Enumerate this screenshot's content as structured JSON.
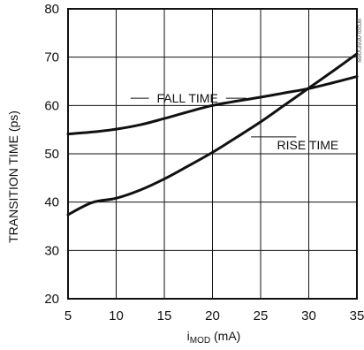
{
  "chart_data": {
    "type": "line",
    "title": "",
    "xlabel": "iMOD (mA)",
    "ylabel": "TRANSITION TIME (ps)",
    "xlim": [
      5,
      35
    ],
    "ylim": [
      20,
      80
    ],
    "x_ticks": [
      5,
      10,
      15,
      20,
      25,
      30,
      35
    ],
    "y_ticks": [
      20,
      30,
      40,
      50,
      60,
      70,
      80
    ],
    "grid": true,
    "legend": "inline-labels",
    "series": [
      {
        "name": "FALL TIME",
        "x": [
          5,
          7.5,
          10,
          12.5,
          15,
          17.5,
          20,
          22.5,
          25,
          27.5,
          30,
          32.5,
          35
        ],
        "values": [
          54.1,
          54.5,
          55.1,
          56.0,
          57.3,
          58.7,
          60.0,
          60.9,
          61.7,
          62.6,
          63.5,
          64.7,
          66.0
        ]
      },
      {
        "name": "RISE TIME",
        "x": [
          5,
          7.5,
          10,
          12.5,
          15,
          17.5,
          20,
          22.5,
          25,
          27.5,
          30,
          32.5,
          35
        ],
        "values": [
          37.4,
          39.9,
          40.8,
          42.5,
          44.8,
          47.5,
          50.3,
          53.4,
          56.6,
          60.1,
          63.6,
          67.1,
          70.7
        ]
      }
    ],
    "annotations": [
      {
        "series": "FALL TIME",
        "text": "FALL TIME"
      },
      {
        "series": "RISE TIME",
        "text": "RISE TIME"
      }
    ],
    "watermark": "MAX3930 toc08"
  }
}
